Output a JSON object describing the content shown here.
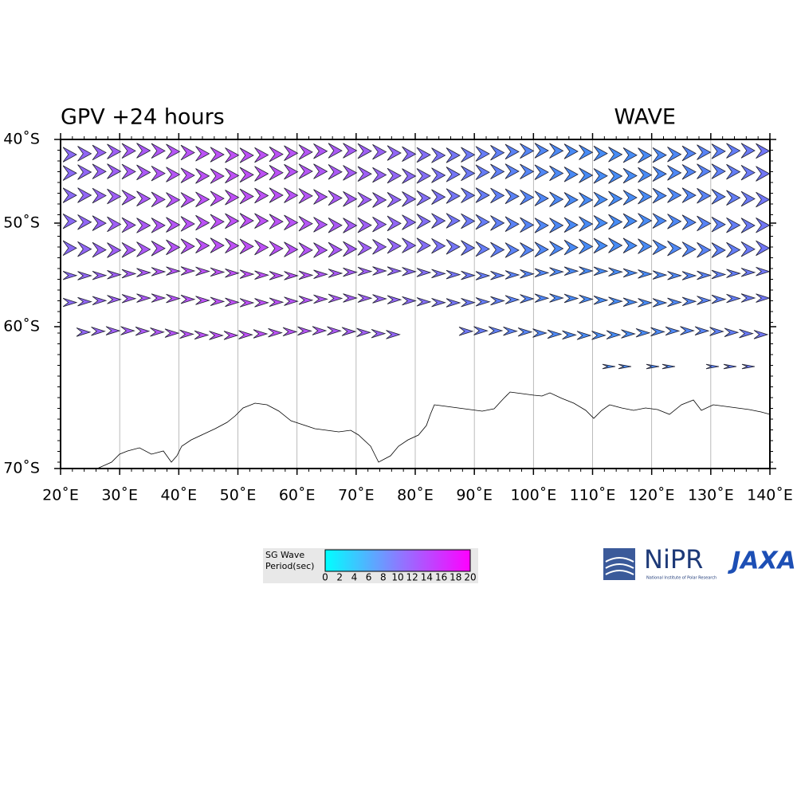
{
  "header": {
    "title": "GPV +24 hours",
    "product": "WAVE"
  },
  "map": {
    "lat_labels": [
      "40˚S",
      "50˚S",
      "60˚S",
      "70˚S"
    ],
    "lon_labels": [
      "20˚E",
      "30˚E",
      "40˚E",
      "50˚E",
      "60˚E",
      "70˚E",
      "80˚E",
      "90˚E",
      "100˚E",
      "110˚E",
      "120˚E",
      "130˚E",
      "140˚E"
    ]
  },
  "legend": {
    "title_lines": [
      "SG Wave",
      "Period(sec)"
    ],
    "labels": [
      "0",
      "2",
      "4",
      "6",
      "8",
      "10",
      "12",
      "14",
      "16",
      "18",
      "20"
    ]
  },
  "logos": {
    "nipr": "NiPR",
    "nipr_full": "National Institute of Polar Research",
    "jaxa": "JAXA"
  }
}
